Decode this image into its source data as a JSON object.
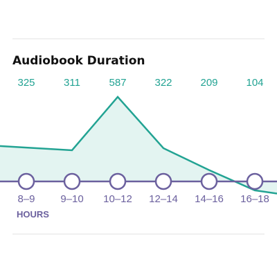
{
  "colors": {
    "line": "#22a393",
    "area": "#e3f4f1",
    "axis": "#6b609e",
    "divider": "#e2e2e2",
    "marker_fill": "#ffffff"
  },
  "chart_data": {
    "type": "area",
    "title": "Audiobook Duration",
    "xlabel": "HOURS",
    "ylabel": "",
    "categories": [
      "8–9",
      "9–10",
      "10–12",
      "12–14",
      "14–16",
      "16–18"
    ],
    "values": [
      325,
      311,
      587,
      322,
      209,
      104
    ],
    "ylim": [
      -240,
      640
    ],
    "grid": false,
    "legend": "none"
  }
}
